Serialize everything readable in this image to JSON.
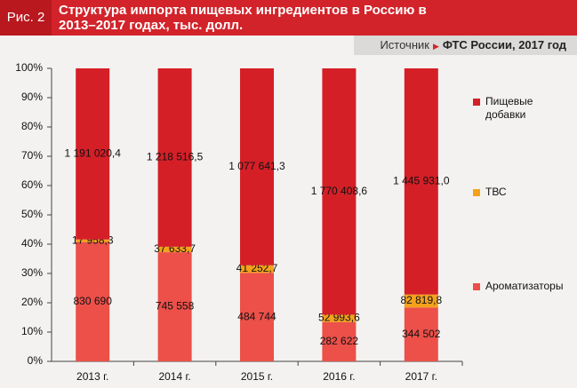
{
  "chart_data": {
    "type": "bar",
    "stacking": "percent",
    "figure_label": "Рис. 2",
    "title": "Структура импорта пищевых ингредиентов в Россию в 2013–2017 годах, тыс. долл.",
    "source_label": "Источник",
    "source": "ФТС России, 2017 год",
    "categories": [
      "2013 г.",
      "2014 г.",
      "2015 г.",
      "2016 г.",
      "2017 г."
    ],
    "series": [
      {
        "name": "Ароматизаторы",
        "color": "#ec5049",
        "values": [
          830690,
          745558,
          484744,
          282622,
          344502
        ],
        "value_labels": [
          "830 690",
          "745 558",
          "484 744",
          "282 622",
          "344 502"
        ]
      },
      {
        "name": "ТВС",
        "color": "#f4a11c",
        "values": [
          17958.3,
          37633.7,
          41252.7,
          52993.6,
          82819.8
        ],
        "value_labels": [
          "17 958,3",
          "37 633,7",
          "41 252,7",
          "52 993,6",
          "82 819,8"
        ]
      },
      {
        "name": "Пищевые добавки",
        "color": "#d51f27",
        "values": [
          1191020.4,
          1218516.5,
          1077641.3,
          1770408.6,
          1445931.0
        ],
        "value_labels": [
          "1 191 020,4",
          "1 218 516,5",
          "1 077 641,3",
          "1 770 408,6",
          "1 445 931,0"
        ]
      }
    ],
    "ylim": [
      0,
      100
    ],
    "yticks": [
      {
        "value": 0,
        "label": "0%"
      },
      {
        "value": 10,
        "label": "10%"
      },
      {
        "value": 20,
        "label": "20%"
      },
      {
        "value": 30,
        "label": "30%"
      },
      {
        "value": 40,
        "label": "40%"
      },
      {
        "value": 50,
        "label": "50%"
      },
      {
        "value": 60,
        "label": "60%"
      },
      {
        "value": 70,
        "label": "70%"
      },
      {
        "value": 80,
        "label": "80%"
      },
      {
        "value": 90,
        "label": "90%"
      },
      {
        "value": 100,
        "label": "100%"
      }
    ],
    "legend": "right"
  }
}
